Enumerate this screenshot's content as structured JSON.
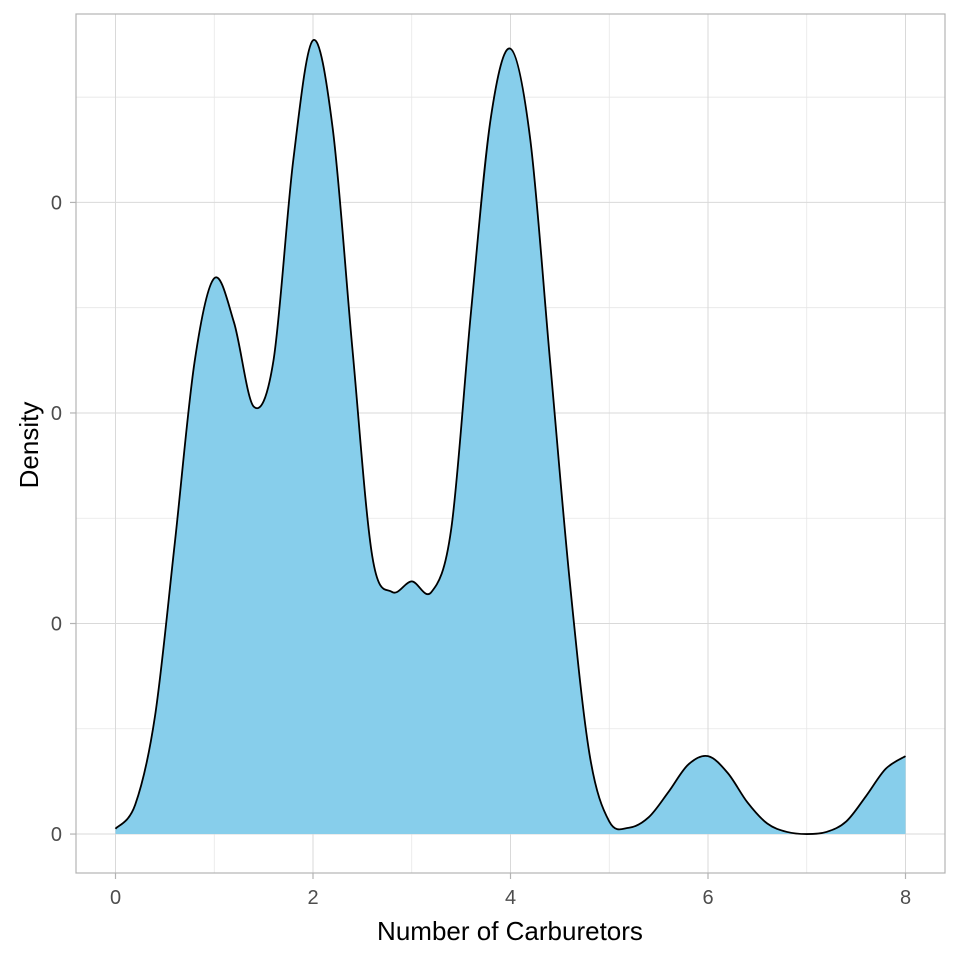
{
  "chart_data": {
    "type": "area",
    "subtype": "density",
    "xlabel": "Number of Carburetors",
    "ylabel": "Density",
    "xlim": [
      -0.4,
      8.4
    ],
    "ylim": [
      -0.0185,
      0.3895
    ],
    "x_ticks": [
      0,
      2,
      4,
      6,
      8
    ],
    "x_tick_labels": [
      "0",
      "2",
      "4",
      "6",
      "8"
    ],
    "y_ticks": [
      0.0,
      0.1,
      0.2,
      0.3
    ],
    "y_tick_labels": [
      "0",
      "0",
      "0",
      "0"
    ],
    "grid": true,
    "fill_color": "#87CEEB",
    "line_color": "#000000",
    "series": [
      {
        "x": [
          0.0,
          0.2,
          0.4,
          0.6,
          0.8,
          1.0,
          1.2,
          1.4,
          1.6,
          1.8,
          2.0,
          2.2,
          2.4,
          2.6,
          2.8,
          3.0,
          3.2,
          3.4,
          3.6,
          3.8,
          4.0,
          4.2,
          4.4,
          4.6,
          4.8,
          5.0,
          5.2,
          5.4,
          5.6,
          5.8,
          6.0,
          6.2,
          6.4,
          6.6,
          6.8,
          7.0,
          7.2,
          7.4,
          7.6,
          7.8,
          8.0
        ],
        "y": [
          0.0025,
          0.014,
          0.056,
          0.138,
          0.224,
          0.264,
          0.243,
          0.203,
          0.225,
          0.32,
          0.377,
          0.335,
          0.23,
          0.132,
          0.115,
          0.12,
          0.115,
          0.145,
          0.248,
          0.34,
          0.373,
          0.33,
          0.225,
          0.12,
          0.038,
          0.006,
          0.003,
          0.008,
          0.02,
          0.033,
          0.037,
          0.029,
          0.015,
          0.005,
          0.001,
          0.0,
          0.001,
          0.006,
          0.018,
          0.031,
          0.037
        ]
      }
    ]
  }
}
